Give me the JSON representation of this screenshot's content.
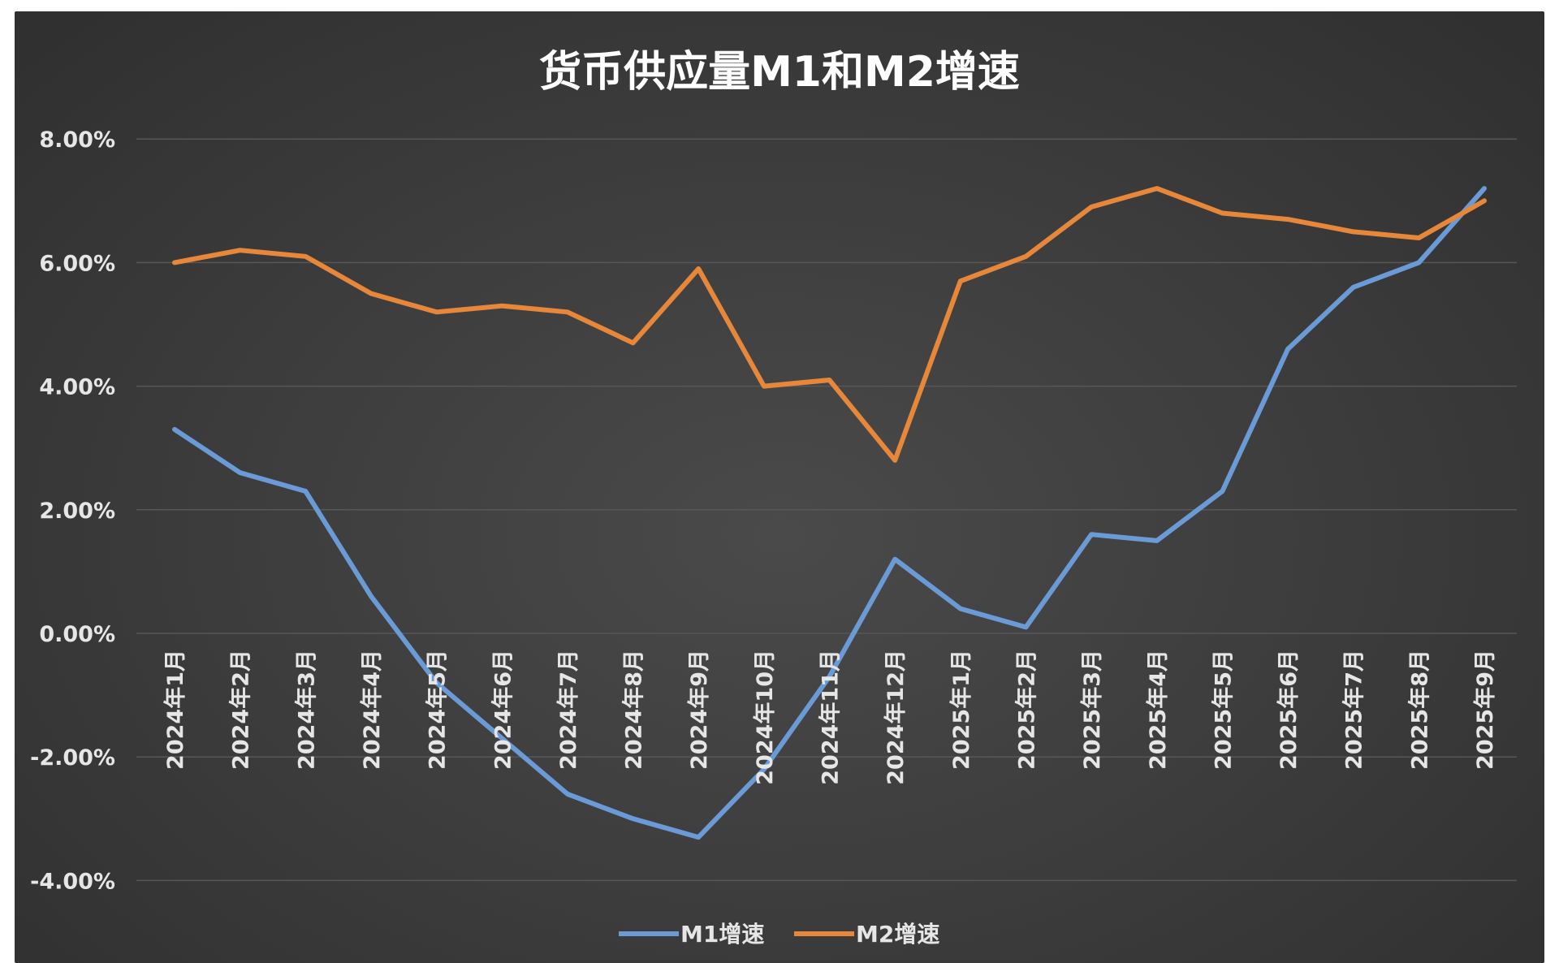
{
  "colors": {
    "m1": "#6a9bd6",
    "m2": "#e6873a",
    "grid": "#575757"
  },
  "chart_data": {
    "type": "line",
    "title": "货币供应量M1和M2增速",
    "x": [
      "2024年1月",
      "2024年2月",
      "2024年3月",
      "2024年4月",
      "2024年5月",
      "2024年6月",
      "2024年7月",
      "2024年8月",
      "2024年9月",
      "2024年10月",
      "2024年11月",
      "2024年12月",
      "2025年1月",
      "2025年2月",
      "2025年3月",
      "2025年4月",
      "2025年5月",
      "2025年6月",
      "2025年7月",
      "2025年8月",
      "2025年9月"
    ],
    "series": [
      {
        "name": "M1增速",
        "color": "#6a9bd6",
        "values": [
          3.3,
          2.6,
          2.3,
          0.6,
          -0.8,
          -1.7,
          -2.6,
          -3.0,
          -3.3,
          -2.2,
          -0.7,
          1.2,
          0.4,
          0.1,
          1.6,
          1.5,
          2.3,
          4.6,
          5.6,
          6.0,
          7.2
        ]
      },
      {
        "name": "M2增速",
        "color": "#e6873a",
        "values": [
          6.0,
          6.2,
          6.1,
          5.5,
          5.2,
          5.3,
          5.2,
          4.7,
          5.9,
          4.0,
          4.1,
          2.8,
          5.7,
          6.1,
          6.9,
          7.2,
          6.8,
          6.7,
          6.5,
          6.4,
          7.0
        ]
      }
    ],
    "yticks": [
      "8.00%",
      "6.00%",
      "4.00%",
      "2.00%",
      "0.00%",
      "-2.00%",
      "-4.00%"
    ],
    "ytick_values": [
      8,
      6,
      4,
      2,
      0,
      -2,
      -4
    ],
    "ylim": [
      -4,
      8
    ],
    "grid": true,
    "legend": "bottom-center",
    "legend_labels": [
      "M1增速",
      "M2增速"
    ]
  }
}
